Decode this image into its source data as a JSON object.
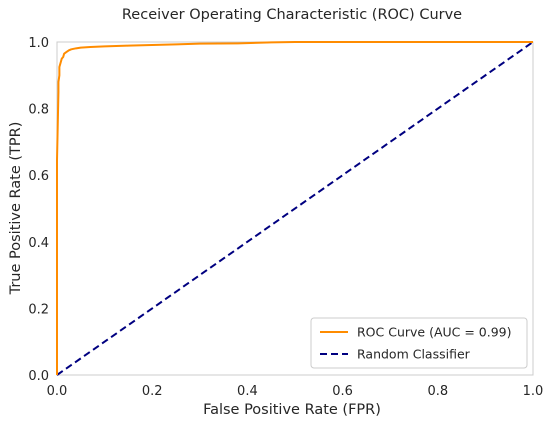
{
  "chart_data": {
    "type": "line",
    "title": "Receiver Operating Characteristic (ROC) Curve",
    "xlabel": "False Positive Rate (FPR)",
    "ylabel": "True Positive Rate (TPR)",
    "xlim": [
      0.0,
      1.0
    ],
    "ylim": [
      0.0,
      1.0
    ],
    "xticks": [
      "0.0",
      "0.2",
      "0.4",
      "0.6",
      "0.8",
      "1.0"
    ],
    "yticks": [
      "0.0",
      "0.2",
      "0.4",
      "0.6",
      "0.8",
      "1.0"
    ],
    "grid": false,
    "legend_position": "lower-right",
    "series": [
      {
        "name": "ROC Curve (AUC = 0.99)",
        "color": "#ff8c00",
        "style": "solid",
        "x": [
          0.0,
          0.0,
          0.003,
          0.003,
          0.005,
          0.005,
          0.008,
          0.01,
          0.013,
          0.015,
          0.02,
          0.025,
          0.03,
          0.04,
          0.05,
          0.07,
          0.1,
          0.15,
          0.2,
          0.25,
          0.3,
          0.38,
          0.45,
          0.5,
          0.6,
          0.7,
          0.8,
          0.9,
          1.0
        ],
        "y": [
          0.0,
          0.645,
          0.85,
          0.88,
          0.9,
          0.925,
          0.94,
          0.95,
          0.955,
          0.965,
          0.97,
          0.975,
          0.978,
          0.981,
          0.983,
          0.985,
          0.987,
          0.989,
          0.991,
          0.993,
          0.995,
          0.996,
          0.999,
          1.0,
          1.0,
          1.0,
          1.0,
          1.0,
          1.0
        ]
      },
      {
        "name": "Random Classifier",
        "color": "#000080",
        "style": "dashed",
        "x": [
          0.0,
          1.0
        ],
        "y": [
          0.0,
          1.0
        ]
      }
    ]
  }
}
